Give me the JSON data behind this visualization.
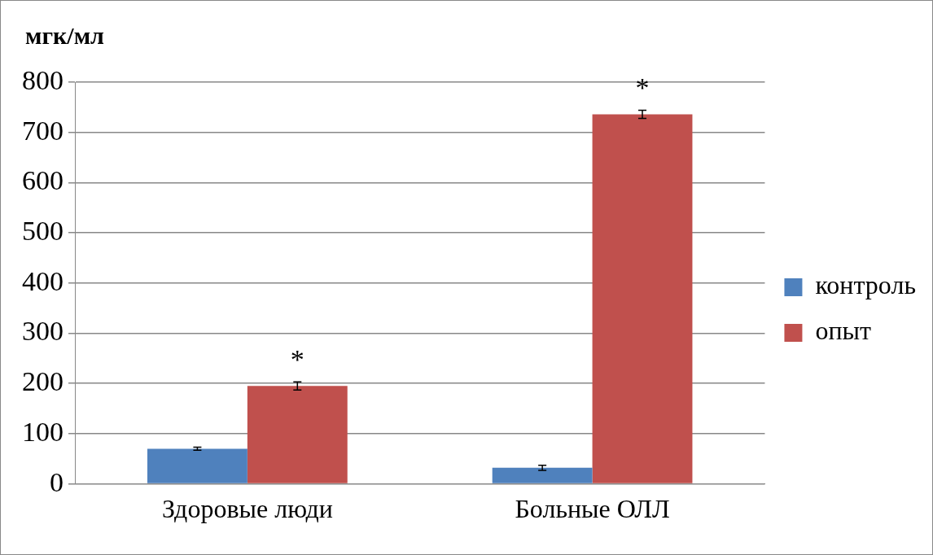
{
  "chart_data": {
    "type": "bar",
    "ylabel": "мгк/мл",
    "categories": [
      "Здоровые люди",
      "Больные ОЛЛ"
    ],
    "series": [
      {
        "name": "контроль",
        "color": "#4f81bd",
        "values": [
          70,
          32
        ],
        "errors": [
          3,
          5
        ]
      },
      {
        "name": "опыт",
        "color": "#c0504d",
        "values": [
          195,
          736
        ],
        "errors": [
          8,
          8
        ]
      }
    ],
    "ylim": [
      0,
      800
    ],
    "yticks": [
      0,
      100,
      200,
      300,
      400,
      500,
      600,
      700,
      800
    ],
    "grid": "y",
    "legend": "right",
    "annotations": [
      {
        "text": "*",
        "x": "Здоровые люди",
        "y": 195
      },
      {
        "text": "*",
        "x": "Больные ОЛЛ",
        "y": 736
      }
    ]
  }
}
